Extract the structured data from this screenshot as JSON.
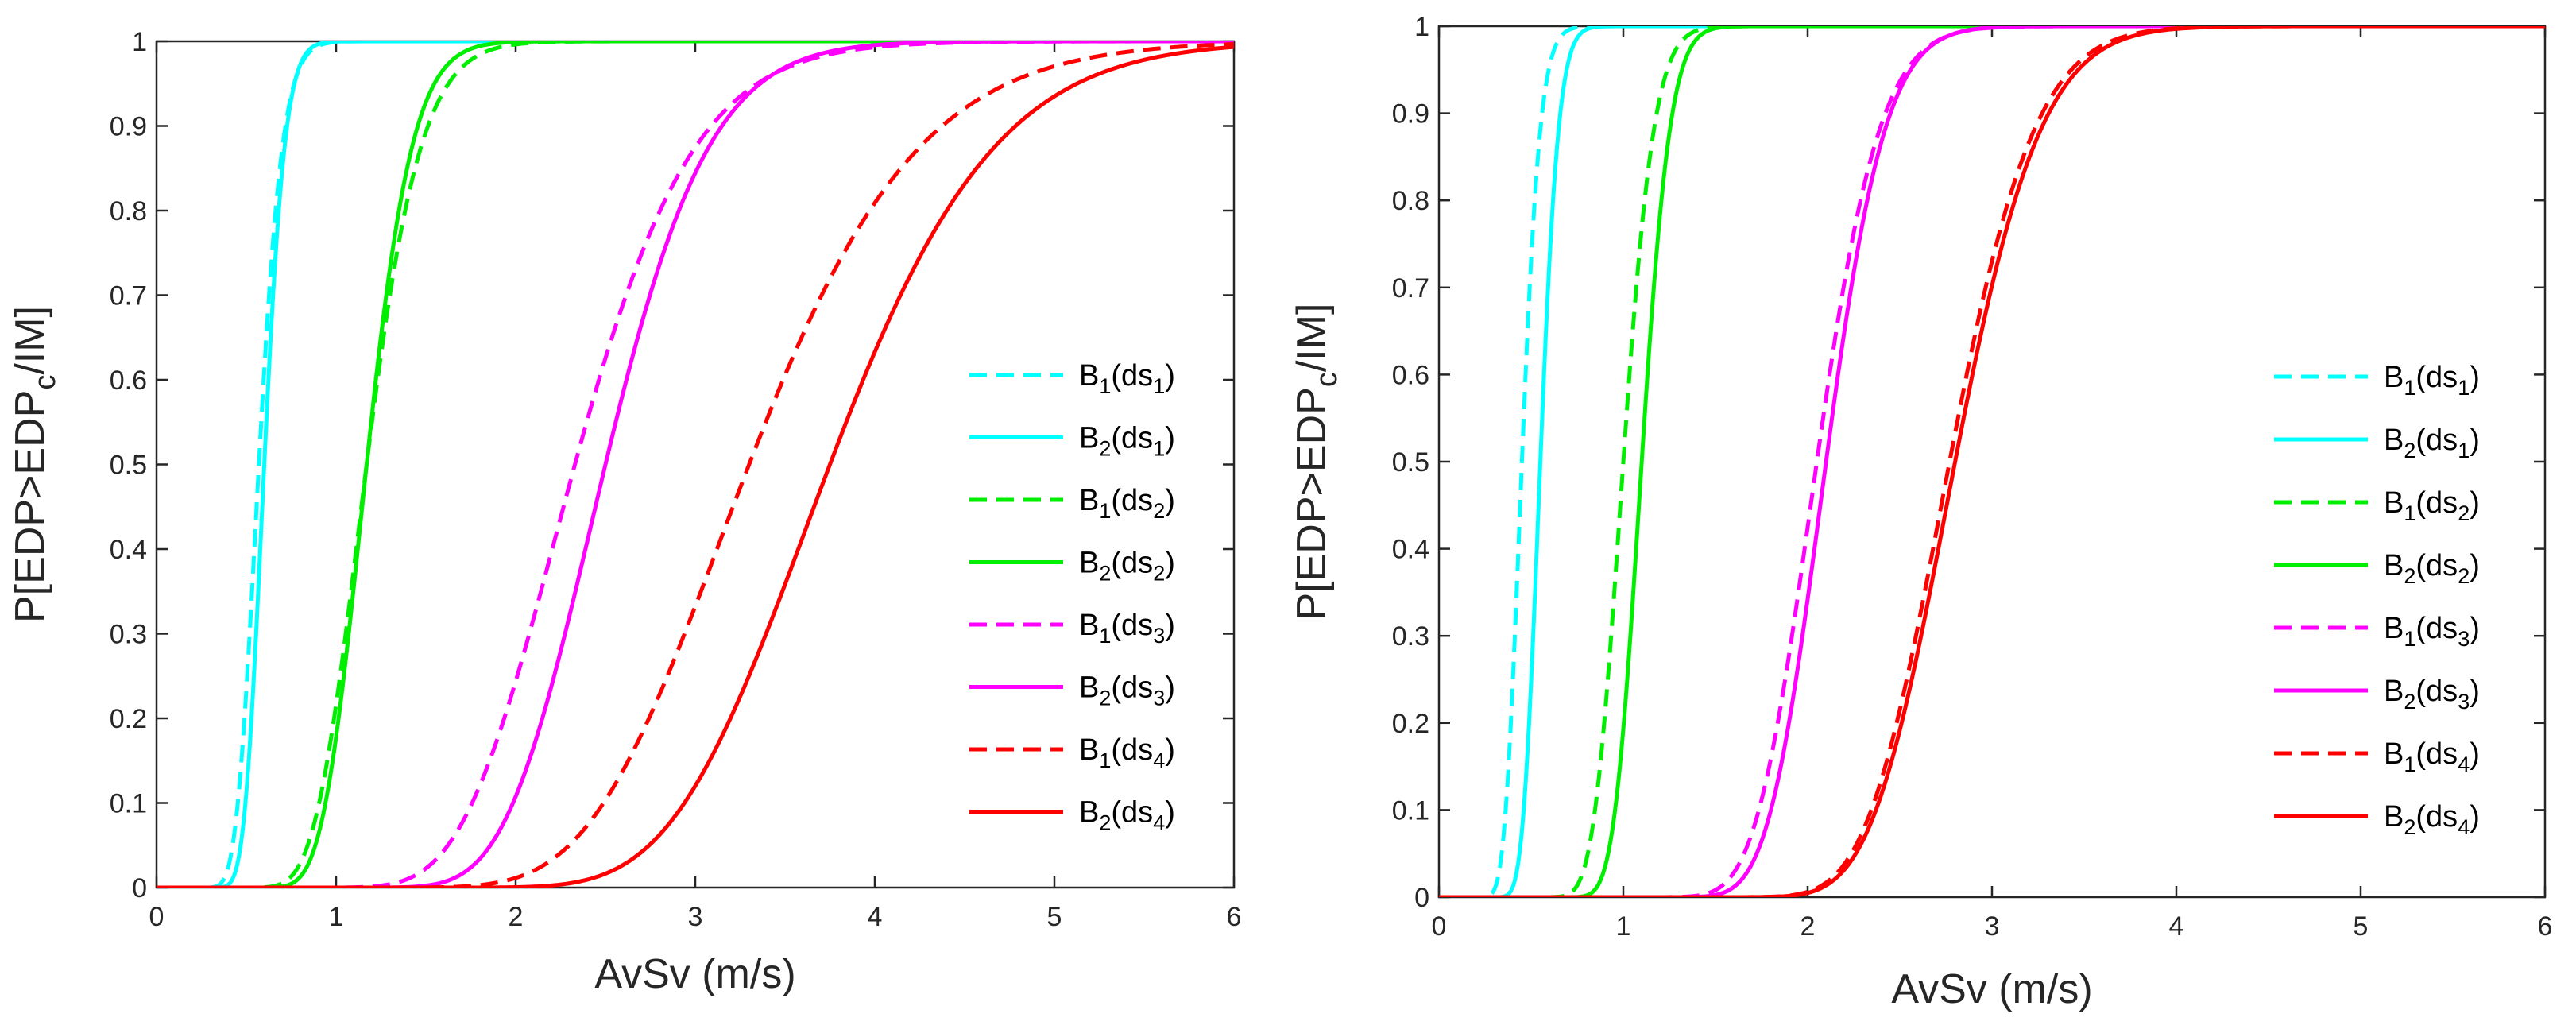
{
  "chart_data": [
    {
      "type": "line",
      "panel": "left",
      "xlabel": "AvSv (m/s)",
      "ylabel": {
        "main": "P[EDP>EDP",
        "sub": "c",
        "tail": "/IM]"
      },
      "xlim": [
        0,
        6
      ],
      "ylim": [
        0,
        1
      ],
      "xticks": [
        "0",
        "1",
        "2",
        "3",
        "4",
        "5",
        "6"
      ],
      "yticks": [
        "0",
        "0.1",
        "0.2",
        "0.3",
        "0.4",
        "0.5",
        "0.6",
        "0.7",
        "0.8",
        "0.9",
        "1"
      ],
      "legend_location": "right",
      "series": [
        {
          "name": "B1(ds1)",
          "label": {
            "b": "B",
            "bsub": "1",
            "mid": "(ds",
            "dsub": "1",
            "end": ")"
          },
          "color": "#00FFFF",
          "style": "dashed",
          "median": 0.57,
          "beta": 0.18
        },
        {
          "name": "B2(ds1)",
          "label": {
            "b": "B",
            "bsub": "2",
            "mid": "(ds",
            "dsub": "1",
            "end": ")"
          },
          "color": "#00FFFF",
          "style": "solid",
          "median": 0.6,
          "beta": 0.15
        },
        {
          "name": "B1(ds2)",
          "label": {
            "b": "B",
            "bsub": "1",
            "mid": "(ds",
            "dsub": "2",
            "end": ")"
          },
          "color": "#00EE00",
          "style": "dashed",
          "median": 1.17,
          "beta": 0.2
        },
        {
          "name": "B2(ds2)",
          "label": {
            "b": "B",
            "bsub": "2",
            "mid": "(ds",
            "dsub": "2",
            "end": ")"
          },
          "color": "#00EE00",
          "style": "solid",
          "median": 1.17,
          "beta": 0.17
        },
        {
          "name": "B1(ds3)",
          "label": {
            "b": "B",
            "bsub": "1",
            "mid": "(ds",
            "dsub": "3",
            "end": ")"
          },
          "color": "#FF00FF",
          "style": "dashed",
          "median": 2.33,
          "beta": 0.22
        },
        {
          "name": "B2(ds3)",
          "label": {
            "b": "B",
            "bsub": "2",
            "mid": "(ds",
            "dsub": "3",
            "end": ")"
          },
          "color": "#FF00FF",
          "style": "solid",
          "median": 2.5,
          "beta": 0.18
        },
        {
          "name": "B1(ds4)",
          "label": {
            "b": "B",
            "bsub": "1",
            "mid": "(ds",
            "dsub": "4",
            "end": ")"
          },
          "color": "#FF0000",
          "style": "dashed",
          "median": 3.3,
          "beta": 0.22
        },
        {
          "name": "B2(ds4)",
          "label": {
            "b": "B",
            "bsub": "2",
            "mid": "(ds",
            "dsub": "4",
            "end": ")"
          },
          "color": "#FF0000",
          "style": "solid",
          "median": 3.75,
          "beta": 0.19
        }
      ]
    },
    {
      "type": "line",
      "panel": "right",
      "xlabel": "AvSv (m/s)",
      "ylabel": {
        "main": "P[EDP>EDP",
        "sub": "c",
        "tail": "/IM]"
      },
      "xlim": [
        0,
        6
      ],
      "ylim": [
        0,
        1
      ],
      "xticks": [
        "0",
        "1",
        "2",
        "3",
        "4",
        "5",
        "6"
      ],
      "yticks": [
        "0",
        "0.1",
        "0.2",
        "0.3",
        "0.4",
        "0.5",
        "0.6",
        "0.7",
        "0.8",
        "0.9",
        "1"
      ],
      "legend_location": "right",
      "series": [
        {
          "name": "B1(ds1)",
          "label": {
            "b": "B",
            "bsub": "1",
            "mid": "(ds",
            "dsub": "1",
            "end": ")"
          },
          "color": "#00FFFF",
          "style": "dashed",
          "median": 0.45,
          "beta": 0.17
        },
        {
          "name": "B2(ds1)",
          "label": {
            "b": "B",
            "bsub": "2",
            "mid": "(ds",
            "dsub": "1",
            "end": ")"
          },
          "color": "#00FFFF",
          "style": "solid",
          "median": 0.55,
          "beta": 0.14
        },
        {
          "name": "B1(ds2)",
          "label": {
            "b": "B",
            "bsub": "1",
            "mid": "(ds",
            "dsub": "2",
            "end": ")"
          },
          "color": "#00EE00",
          "style": "dashed",
          "median": 1.0,
          "beta": 0.13
        },
        {
          "name": "B2(ds2)",
          "label": {
            "b": "B",
            "bsub": "2",
            "mid": "(ds",
            "dsub": "2",
            "end": ")"
          },
          "color": "#00EE00",
          "style": "solid",
          "median": 1.1,
          "beta": 0.11
        },
        {
          "name": "B1(ds3)",
          "label": {
            "b": "B",
            "bsub": "1",
            "mid": "(ds",
            "dsub": "3",
            "end": ")"
          },
          "color": "#FF00FF",
          "style": "dashed",
          "median": 2.05,
          "beta": 0.13
        },
        {
          "name": "B2(ds3)",
          "label": {
            "b": "B",
            "bsub": "2",
            "mid": "(ds",
            "dsub": "3",
            "end": ")"
          },
          "color": "#FF00FF",
          "style": "solid",
          "median": 2.1,
          "beta": 0.12
        },
        {
          "name": "B1(ds4)",
          "label": {
            "b": "B",
            "bsub": "1",
            "mid": "(ds",
            "dsub": "4",
            "end": ")"
          },
          "color": "#FF0000",
          "style": "dashed",
          "median": 2.77,
          "beta": 0.13
        },
        {
          "name": "B2(ds4)",
          "label": {
            "b": "B",
            "bsub": "2",
            "mid": "(ds",
            "dsub": "4",
            "end": ")"
          },
          "color": "#FF0000",
          "style": "solid",
          "median": 2.8,
          "beta": 0.13
        }
      ]
    }
  ]
}
